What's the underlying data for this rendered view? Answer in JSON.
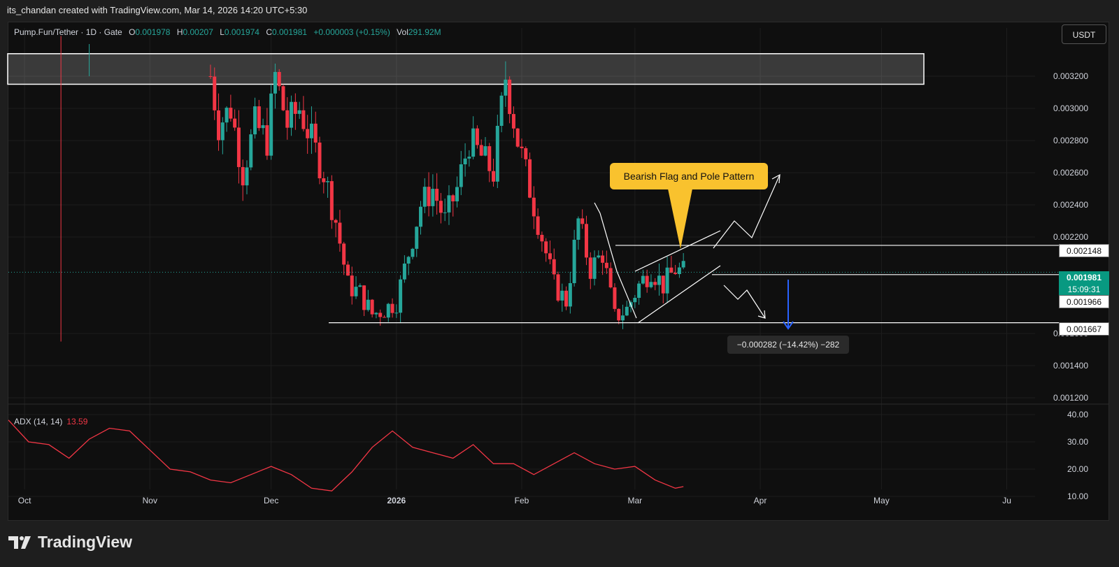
{
  "header": {
    "attribution": "its_chandan created with TradingView.com, Mar 14, 2026 14:20 UTC+5:30"
  },
  "legend": {
    "symbol": "Pump.Fun/Tether · 1D · Gate",
    "open_label": "O",
    "open": "0.001978",
    "high_label": "H",
    "high": "0.00207",
    "low_label": "L",
    "low": "0.001974",
    "close_label": "C",
    "close": "0.001981",
    "change": "+0.000003 (+0.15%)",
    "vol_label": "Vol",
    "vol": "291.92M"
  },
  "currency_button": "USDT",
  "annotation": "Bearish Flag and Pole Pattern",
  "measure": "−0.000282 (−14.42%) −282",
  "price_tags": {
    "upper": "0.002148",
    "current_price": "0.001981",
    "countdown": "15:09:31",
    "mid": "0.001966",
    "lower": "0.001667"
  },
  "adx": {
    "label": "ADX (14, 14)",
    "value": "13.59"
  },
  "footer": {
    "brand": "TradingView"
  },
  "colors": {
    "up": "#26a69a",
    "down": "#f23645",
    "adx_line": "#f23645",
    "callout": "#f9c22e",
    "measure_arrow": "#2962ff"
  },
  "chart_data": {
    "type": "candlestick",
    "price_axis": {
      "min": 0.0012,
      "max": 0.0034,
      "ticks": [
        "0.003200",
        "0.003000",
        "0.002800",
        "0.002600",
        "0.002400",
        "0.002200",
        "0.001600",
        "0.001400",
        "0.001200"
      ]
    },
    "time_axis": {
      "labels": [
        {
          "label": "Oct",
          "date": "2025-10-01"
        },
        {
          "label": "Nov",
          "date": "2025-11-01"
        },
        {
          "label": "Dec",
          "date": "2025-12-01"
        },
        {
          "label": "2026",
          "date": "2026-01-01"
        },
        {
          "label": "Feb",
          "date": "2026-02-01"
        },
        {
          "label": "Mar",
          "date": "2026-03-01"
        },
        {
          "label": "Apr",
          "date": "2026-04-01"
        },
        {
          "label": "May",
          "date": "2026-05-01"
        },
        {
          "label": "Ju",
          "date": "2026-06-01"
        }
      ],
      "start": "2025-09-27",
      "end": "2026-06-08"
    },
    "closes": [
      {
        "date": "2025-11-16",
        "close": 0.0032
      },
      {
        "date": "2025-11-18",
        "close": 0.0029
      },
      {
        "date": "2025-11-21",
        "close": 0.003
      },
      {
        "date": "2025-11-24",
        "close": 0.0026
      },
      {
        "date": "2025-11-27",
        "close": 0.0029
      },
      {
        "date": "2025-11-30",
        "close": 0.0028
      },
      {
        "date": "2025-12-02",
        "close": 0.0032
      },
      {
        "date": "2025-12-05",
        "close": 0.0029
      },
      {
        "date": "2025-12-08",
        "close": 0.003
      },
      {
        "date": "2025-12-11",
        "close": 0.0028
      },
      {
        "date": "2025-12-14",
        "close": 0.0026
      },
      {
        "date": "2025-12-17",
        "close": 0.0023
      },
      {
        "date": "2025-12-20",
        "close": 0.0019
      },
      {
        "date": "2025-12-23",
        "close": 0.00185
      },
      {
        "date": "2025-12-26",
        "close": 0.00172
      },
      {
        "date": "2025-12-29",
        "close": 0.00175
      },
      {
        "date": "2026-01-01",
        "close": 0.0018
      },
      {
        "date": "2026-01-04",
        "close": 0.0021
      },
      {
        "date": "2026-01-07",
        "close": 0.0024
      },
      {
        "date": "2026-01-10",
        "close": 0.0025
      },
      {
        "date": "2026-01-13",
        "close": 0.0023
      },
      {
        "date": "2026-01-16",
        "close": 0.0025
      },
      {
        "date": "2026-01-19",
        "close": 0.0028
      },
      {
        "date": "2026-01-22",
        "close": 0.0027
      },
      {
        "date": "2026-01-25",
        "close": 0.0026
      },
      {
        "date": "2026-01-28",
        "close": 0.0032
      },
      {
        "date": "2026-01-31",
        "close": 0.0028
      },
      {
        "date": "2026-02-03",
        "close": 0.0025
      },
      {
        "date": "2026-02-06",
        "close": 0.0022
      },
      {
        "date": "2026-02-09",
        "close": 0.0019
      },
      {
        "date": "2026-02-12",
        "close": 0.0018
      },
      {
        "date": "2026-02-15",
        "close": 0.0023
      },
      {
        "date": "2026-02-18",
        "close": 0.002
      },
      {
        "date": "2026-02-21",
        "close": 0.0021
      },
      {
        "date": "2026-02-24",
        "close": 0.0017
      },
      {
        "date": "2026-02-27",
        "close": 0.00175
      },
      {
        "date": "2026-03-02",
        "close": 0.0019
      },
      {
        "date": "2026-03-05",
        "close": 0.002
      },
      {
        "date": "2026-03-08",
        "close": 0.0019
      },
      {
        "date": "2026-03-11",
        "close": 0.002
      },
      {
        "date": "2026-03-13",
        "close": 0.00198
      }
    ],
    "levels": {
      "zone_top": 0.00334,
      "zone_bottom": 0.00315,
      "upper": 0.002148,
      "current": 0.001981,
      "mid": 0.001966,
      "lower": 0.001667
    },
    "adx_panel": {
      "ticks": [
        "40.00",
        "30.00",
        "20.00",
        "10.00"
      ],
      "min": 10,
      "max": 40,
      "series": [
        {
          "date": "2025-09-27",
          "value": 38
        },
        {
          "date": "2025-10-02",
          "value": 30
        },
        {
          "date": "2025-10-07",
          "value": 29
        },
        {
          "date": "2025-10-12",
          "value": 24
        },
        {
          "date": "2025-10-17",
          "value": 31
        },
        {
          "date": "2025-10-22",
          "value": 35
        },
        {
          "date": "2025-10-27",
          "value": 34
        },
        {
          "date": "2025-11-01",
          "value": 27
        },
        {
          "date": "2025-11-06",
          "value": 20
        },
        {
          "date": "2025-11-11",
          "value": 19
        },
        {
          "date": "2025-11-16",
          "value": 16
        },
        {
          "date": "2025-11-21",
          "value": 15
        },
        {
          "date": "2025-11-26",
          "value": 18
        },
        {
          "date": "2025-12-01",
          "value": 21
        },
        {
          "date": "2025-12-06",
          "value": 18
        },
        {
          "date": "2025-12-11",
          "value": 13
        },
        {
          "date": "2025-12-16",
          "value": 12
        },
        {
          "date": "2025-12-21",
          "value": 19
        },
        {
          "date": "2025-12-26",
          "value": 28
        },
        {
          "date": "2025-12-31",
          "value": 34
        },
        {
          "date": "2026-01-05",
          "value": 28
        },
        {
          "date": "2026-01-10",
          "value": 26
        },
        {
          "date": "2026-01-15",
          "value": 24
        },
        {
          "date": "2026-01-20",
          "value": 29
        },
        {
          "date": "2026-01-25",
          "value": 22
        },
        {
          "date": "2026-01-30",
          "value": 22
        },
        {
          "date": "2026-02-04",
          "value": 18
        },
        {
          "date": "2026-02-09",
          "value": 22
        },
        {
          "date": "2026-02-14",
          "value": 26
        },
        {
          "date": "2026-02-19",
          "value": 22
        },
        {
          "date": "2026-02-24",
          "value": 20
        },
        {
          "date": "2026-03-01",
          "value": 21
        },
        {
          "date": "2026-03-06",
          "value": 16
        },
        {
          "date": "2026-03-11",
          "value": 13
        },
        {
          "date": "2026-03-13",
          "value": 13.59
        }
      ]
    }
  }
}
